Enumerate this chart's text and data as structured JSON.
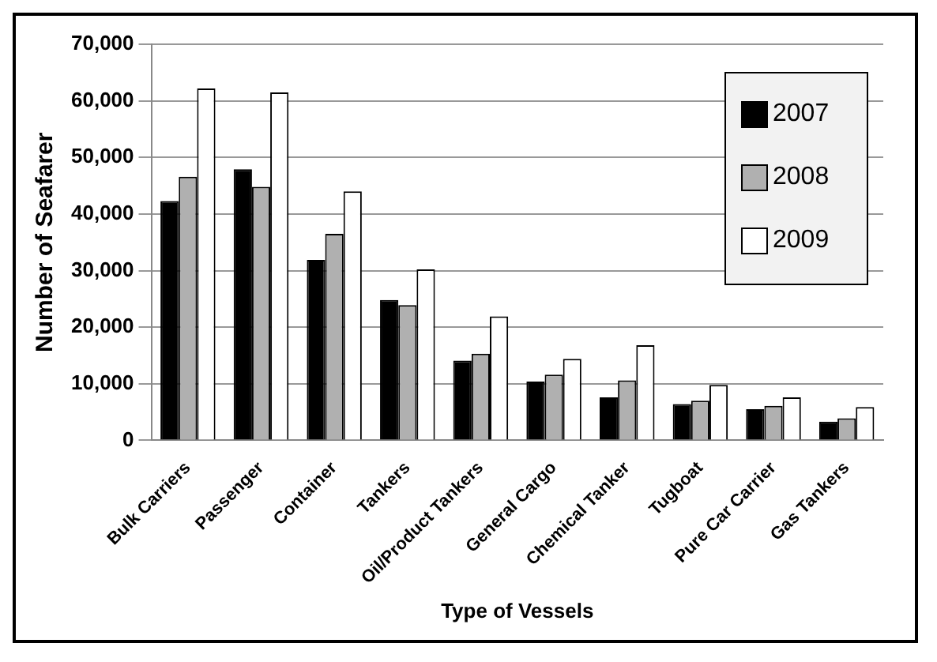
{
  "chart_data": {
    "type": "bar",
    "xlabel": "Type of Vessels",
    "ylabel": "Number of Seafarer",
    "categories": [
      "Bulk Carriers",
      "Passenger",
      "Container",
      "Tankers",
      "Oil/Product Tankers",
      "General Cargo",
      "Chemical Tanker",
      "Tugboat",
      "Pure Car Carrier",
      "Gas Tankers"
    ],
    "series": [
      {
        "name": "2007",
        "color": "#000000",
        "values": [
          42300,
          47900,
          31900,
          24800,
          14100,
          10400,
          7600,
          6400,
          5500,
          3300
        ]
      },
      {
        "name": "2008",
        "color": "#b0b0b0",
        "values": [
          46600,
          44800,
          36500,
          23900,
          15300,
          11600,
          10600,
          7000,
          6100,
          3900
        ]
      },
      {
        "name": "2009",
        "color": "#ffffff",
        "values": [
          62200,
          61500,
          44000,
          30200,
          21900,
          14400,
          16800,
          9800,
          7600,
          5900
        ]
      }
    ],
    "ylim": [
      0,
      70000
    ],
    "yticks": [
      0,
      {
        "value": 10000,
        "label": "10,000"
      },
      {
        "value": 20000,
        "label": "20,000"
      },
      {
        "value": 30000,
        "label": "30,000"
      },
      {
        "value": 40000,
        "label": "40,000"
      },
      {
        "value": 50000,
        "label": "50,000"
      },
      {
        "value": 60000,
        "label": "60,000"
      },
      {
        "value": 70000,
        "label": "70,000"
      }
    ],
    "grid": "y",
    "legend": "top right"
  }
}
